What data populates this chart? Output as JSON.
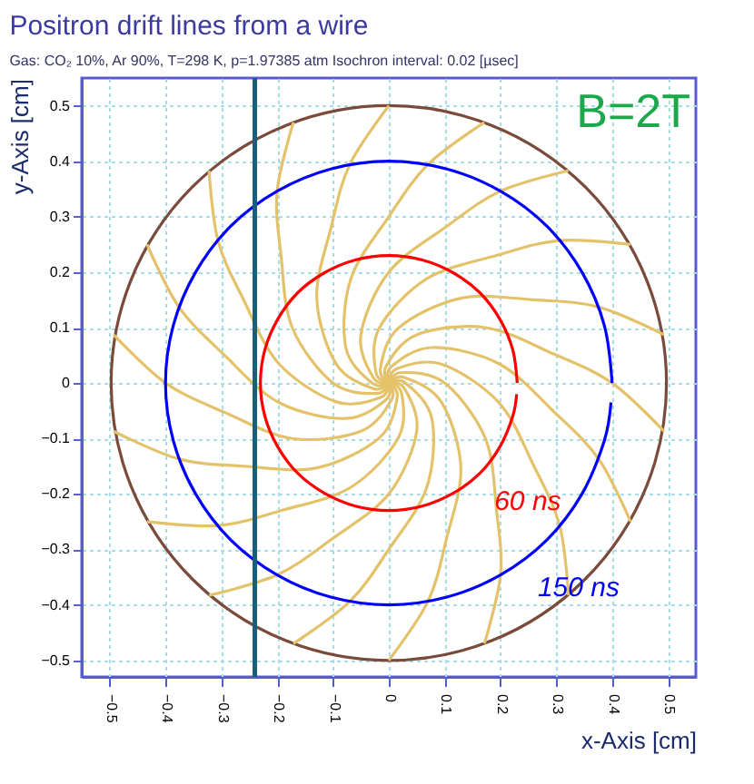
{
  "chart_data": {
    "type": "line",
    "title": "Positron drift lines from a wire",
    "subtitle": "Gas: CO₂ 10%, Ar 90%, T=298 K, p=1.97385 atm   Isochron interval: 0.02 [µsec]",
    "xlabel": "x-Axis [cm]",
    "ylabel": "y-Axis [cm]",
    "xlim": [
      -0.55,
      0.55
    ],
    "ylim": [
      -0.53,
      0.55
    ],
    "xticks": [
      -0.5,
      -0.4,
      -0.3,
      -0.2,
      -0.1,
      0,
      0.1,
      0.2,
      0.3,
      0.4,
      0.5
    ],
    "yticks": [
      -0.5,
      -0.4,
      -0.3,
      -0.2,
      -0.1,
      0,
      0.1,
      0.2,
      0.3,
      0.4,
      0.5
    ],
    "grid": true,
    "series": [
      {
        "color": "#e3c26a",
        "x": [
          0,
          -0.028,
          -0.094,
          -0.129,
          -0.103,
          -0.07,
          0
        ],
        "values": [
          0,
          -0.01,
          0.034,
          0.153,
          0.282,
          0.394,
          0.5
        ]
      },
      {
        "color": "#e3c26a",
        "x": [
          0,
          -0.023,
          -0.1,
          -0.173,
          -0.193,
          -0.2,
          -0.171
        ],
        "values": [
          0,
          -0.019,
          0,
          0.1,
          0.23,
          0.346,
          0.47
        ]
      },
      {
        "color": "#e3c26a",
        "x": [
          0,
          -0.015,
          -0.094,
          -0.197,
          -0.26,
          -0.306,
          -0.322
        ],
        "values": [
          0,
          -0.026,
          -0.034,
          0.035,
          0.15,
          0.257,
          0.383
        ]
      },
      {
        "color": "#e3c26a",
        "x": [
          0,
          -0.005,
          -0.077,
          -0.197,
          -0.296,
          -0.376,
          -0.433
        ],
        "values": [
          0,
          -0.03,
          -0.064,
          -0.035,
          0.052,
          0.137,
          0.25
        ]
      },
      {
        "color": "#e3c26a",
        "x": [
          0,
          0.005,
          -0.05,
          -0.173,
          -0.296,
          -0.4,
          -0.493
        ],
        "values": [
          0,
          -0.03,
          -0.087,
          -0.1,
          -0.052,
          0,
          0.087
        ]
      },
      {
        "color": "#e3c26a",
        "x": [
          0,
          0.015,
          -0.017,
          -0.129,
          -0.26,
          -0.376,
          -0.493
        ],
        "values": [
          0,
          -0.026,
          -0.099,
          -0.153,
          -0.15,
          -0.137,
          -0.087
        ]
      },
      {
        "color": "#e3c26a",
        "x": [
          0,
          0.023,
          0.017,
          -0.068,
          -0.193,
          -0.306,
          -0.433
        ],
        "values": [
          0,
          -0.019,
          -0.099,
          -0.188,
          -0.23,
          -0.257,
          -0.25
        ]
      },
      {
        "color": "#e3c26a",
        "x": [
          0,
          0.028,
          0.05,
          0,
          -0.103,
          -0.2,
          -0.322
        ],
        "values": [
          0,
          -0.01,
          -0.087,
          -0.2,
          -0.282,
          -0.346,
          -0.383
        ]
      },
      {
        "color": "#e3c26a",
        "x": [
          0,
          0.03,
          0.077,
          0.068,
          0,
          -0.07,
          -0.171
        ],
        "values": [
          0,
          0,
          -0.064,
          -0.188,
          -0.3,
          -0.394,
          -0.47
        ]
      },
      {
        "color": "#e3c26a",
        "x": [
          0,
          0.028,
          0.094,
          0.129,
          0.103,
          0.07,
          0
        ],
        "values": [
          0,
          0.01,
          -0.034,
          -0.153,
          -0.282,
          -0.394,
          -0.5
        ]
      },
      {
        "color": "#e3c26a",
        "x": [
          0,
          0.023,
          0.1,
          0.173,
          0.193,
          0.2,
          0.171
        ],
        "values": [
          0,
          0.019,
          0,
          -0.1,
          -0.23,
          -0.346,
          -0.47
        ]
      },
      {
        "color": "#e3c26a",
        "x": [
          0,
          0.015,
          0.094,
          0.197,
          0.26,
          0.306,
          0.322
        ],
        "values": [
          0,
          0.026,
          0.034,
          -0.035,
          -0.15,
          -0.257,
          -0.383
        ]
      },
      {
        "color": "#e3c26a",
        "x": [
          0,
          0.005,
          0.077,
          0.197,
          0.296,
          0.376,
          0.433
        ],
        "values": [
          0,
          0.03,
          0.064,
          0.035,
          -0.052,
          -0.137,
          -0.25
        ]
      },
      {
        "color": "#e3c26a",
        "x": [
          0,
          -0.005,
          0.05,
          0.173,
          0.296,
          0.4,
          0.493
        ],
        "values": [
          0,
          0.03,
          0.087,
          0.1,
          0.052,
          0,
          -0.087
        ]
      },
      {
        "color": "#e3c26a",
        "x": [
          0,
          -0.015,
          0.017,
          0.129,
          0.26,
          0.376,
          0.493
        ],
        "values": [
          0,
          0.026,
          0.099,
          0.153,
          0.15,
          0.137,
          0.087
        ]
      },
      {
        "color": "#e3c26a",
        "x": [
          0,
          -0.023,
          -0.017,
          0.068,
          0.193,
          0.306,
          0.433
        ],
        "values": [
          0,
          0.019,
          0.099,
          0.188,
          0.23,
          0.257,
          0.25
        ]
      },
      {
        "color": "#e3c26a",
        "x": [
          0,
          -0.028,
          -0.05,
          0,
          0.103,
          0.2,
          0.322
        ],
        "values": [
          0,
          0.01,
          0.087,
          0.2,
          0.282,
          0.346,
          0.383
        ]
      },
      {
        "color": "#e3c26a",
        "x": [
          0,
          -0.03,
          -0.077,
          -0.068,
          0,
          0.07,
          0.171
        ],
        "values": [
          0,
          0,
          0.064,
          0.188,
          0.3,
          0.394,
          0.47
        ]
      },
      {
        "color": "#0000ff",
        "x": [
          0.4,
          0.386,
          0.346,
          0.283,
          0.2,
          0.104,
          0,
          -0.104,
          -0.2,
          -0.283,
          -0.346,
          -0.386,
          -0.4,
          -0.386,
          -0.346,
          -0.283,
          -0.2,
          -0.104,
          0,
          0.104,
          0.2,
          0.283,
          0.346,
          0.386,
          0.398
        ],
        "values": [
          0,
          0.104,
          0.2,
          0.283,
          0.346,
          0.386,
          0.4,
          0.386,
          0.346,
          0.283,
          0.2,
          0.104,
          0,
          -0.104,
          -0.2,
          -0.283,
          -0.346,
          -0.386,
          -0.4,
          -0.386,
          -0.346,
          -0.283,
          -0.2,
          -0.104,
          -0.035
        ]
      },
      {
        "color": "#ff0000",
        "x": [
          0.23,
          0.222,
          0.199,
          0.163,
          0.115,
          0.06,
          0,
          -0.06,
          -0.115,
          -0.163,
          -0.199,
          -0.222,
          -0.23,
          -0.222,
          -0.199,
          -0.163,
          -0.115,
          -0.06,
          0,
          0.06,
          0.115,
          0.163,
          0.199,
          0.222,
          0.229
        ],
        "values": [
          0,
          0.06,
          0.115,
          0.163,
          0.199,
          0.222,
          0.23,
          0.222,
          0.199,
          0.163,
          0.115,
          0.06,
          0,
          -0.06,
          -0.115,
          -0.163,
          -0.199,
          -0.222,
          -0.23,
          -0.222,
          -0.199,
          -0.163,
          -0.115,
          -0.06,
          -0.02
        ]
      }
    ],
    "ref_lines": [
      {
        "axis": "x",
        "value": -0.24,
        "color": "#1a5f7a"
      }
    ],
    "annotations": [
      {
        "text": "60 ns",
        "x": 0.163,
        "y": -0.163
      },
      {
        "text": "150 ns",
        "x": 0.283,
        "y": -0.283
      },
      "B=2T"
    ]
  }
}
